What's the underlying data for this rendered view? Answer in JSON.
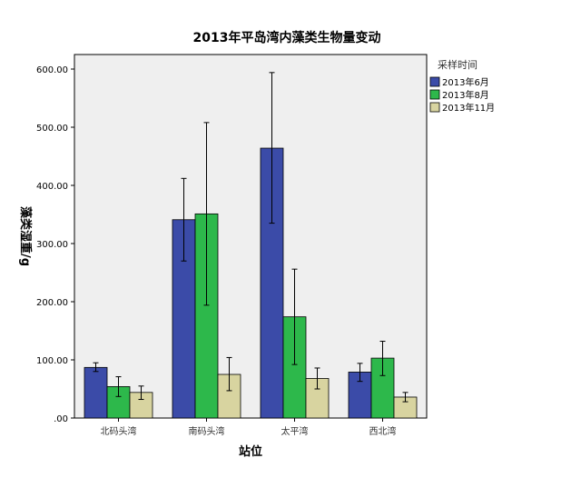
{
  "chart_data": {
    "type": "bar",
    "title": "2013年平岛湾内藻类生物量变动",
    "xlabel": "站位",
    "ylabel": "藻类湿重/g",
    "categories": [
      "北码头湾",
      "南码头湾",
      "太平湾",
      "西北湾"
    ],
    "ylim": [
      0,
      650
    ],
    "yticks": [
      ".00",
      "100.00",
      "200.00",
      "300.00",
      "400.00",
      "500.00",
      "600.00"
    ],
    "legend": {
      "title": "采样时间",
      "placement": "top-right"
    },
    "grid": false,
    "error_bars": true,
    "series": [
      {
        "name": "2013年6月",
        "color": "#3b4ba8",
        "values": [
          87,
          341,
          464,
          79
        ],
        "err_low": [
          80,
          270,
          335,
          63
        ],
        "err_high": [
          95,
          412,
          594,
          94
        ]
      },
      {
        "name": "2013年8月",
        "color": "#2db84b",
        "values": [
          54,
          351,
          174,
          103
        ],
        "err_low": [
          37,
          194,
          92,
          73
        ],
        "err_high": [
          71,
          508,
          256,
          132
        ]
      },
      {
        "name": "2013年11月",
        "color": "#d8d4a0",
        "values": [
          44,
          75,
          68,
          36
        ],
        "err_low": [
          32,
          47,
          50,
          28
        ],
        "err_high": [
          55,
          104,
          86,
          44
        ]
      }
    ],
    "plot_background": "#efefef"
  }
}
